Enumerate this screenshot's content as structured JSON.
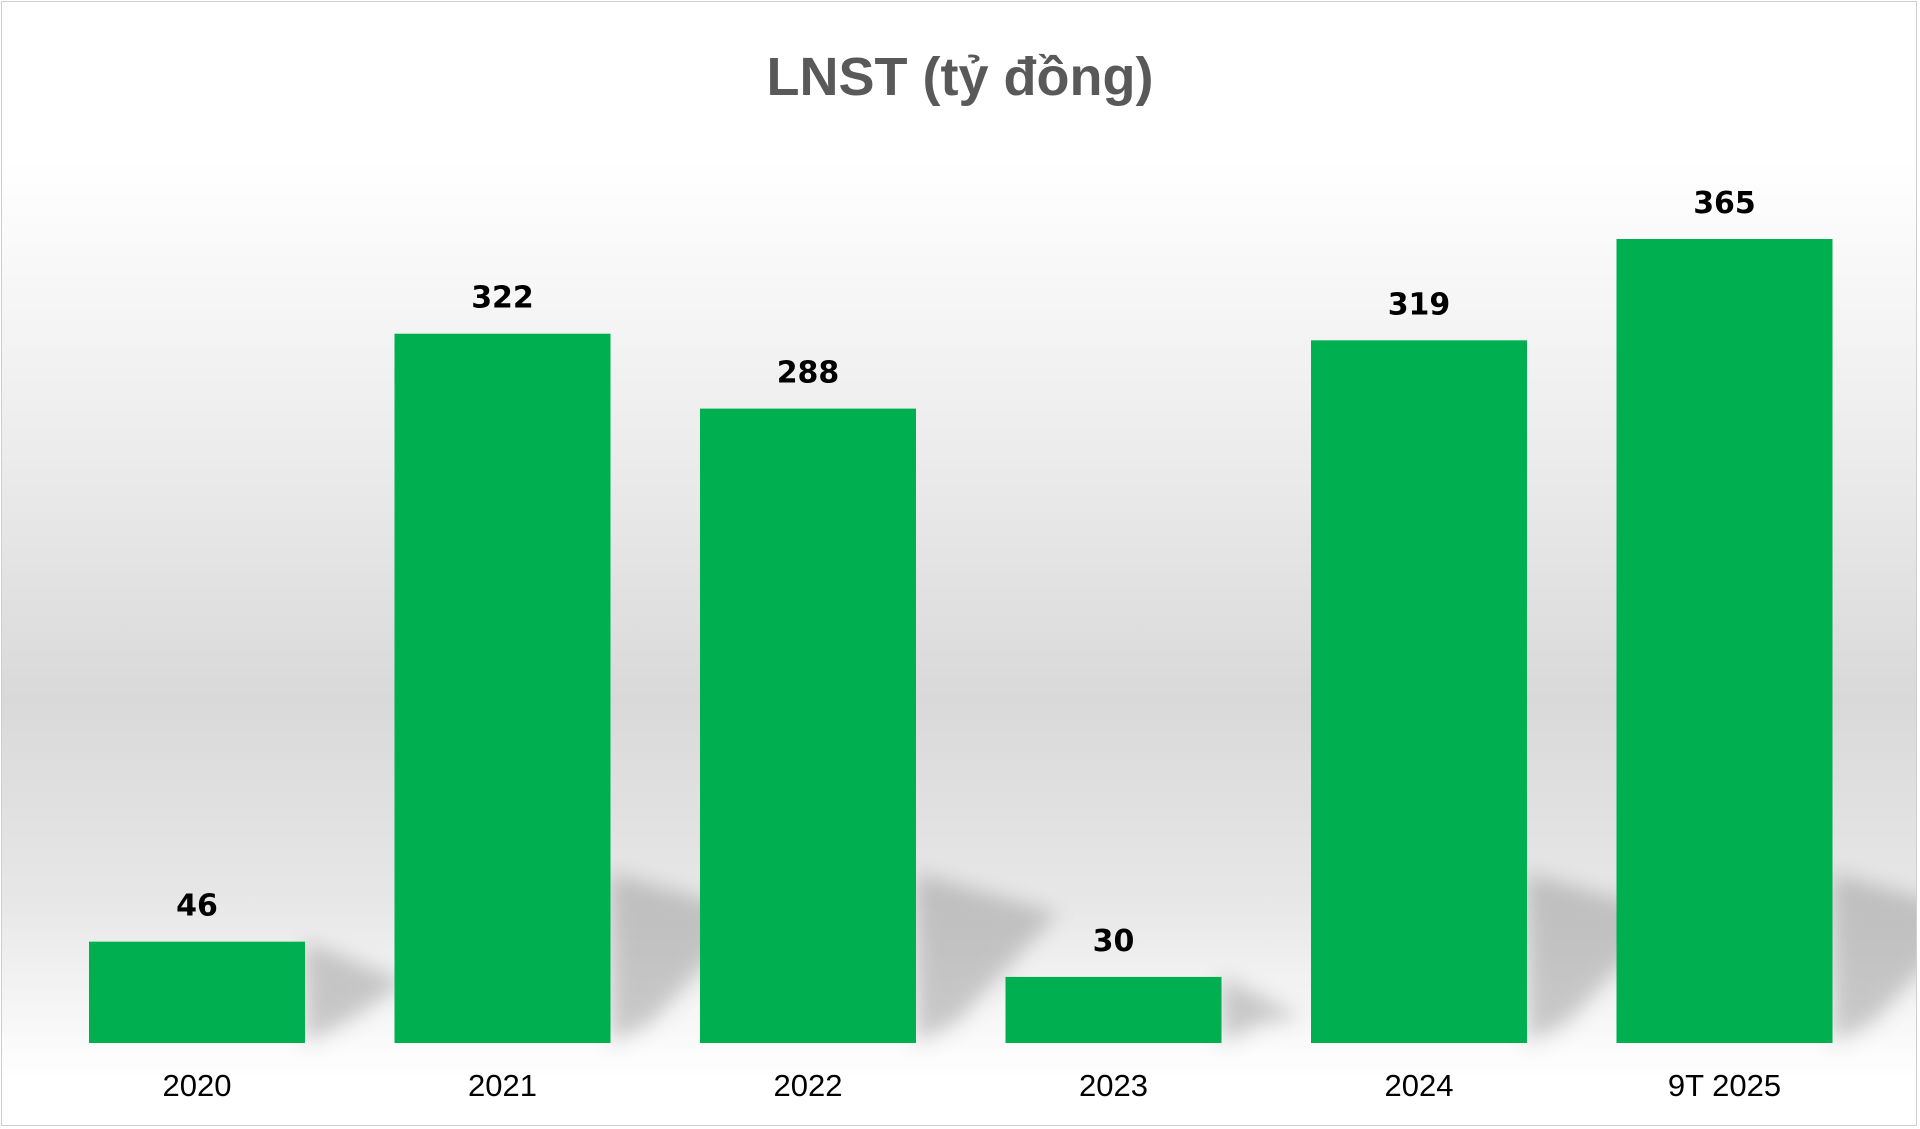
{
  "chart_data": {
    "type": "bar",
    "title": "LNST (tỷ đồng)",
    "xlabel": "",
    "ylabel": "",
    "categories": [
      "2020",
      "2021",
      "2022",
      "2023",
      "2024",
      "9T 2025"
    ],
    "values": [
      46,
      322,
      288,
      30,
      319,
      365
    ],
    "data_labels": [
      "46",
      "322",
      "288",
      "30",
      "319",
      "365"
    ],
    "ylim": [
      0,
      365
    ],
    "grid": false,
    "legend": "none",
    "bar_color": "#00B050",
    "title_color": "#595959"
  }
}
